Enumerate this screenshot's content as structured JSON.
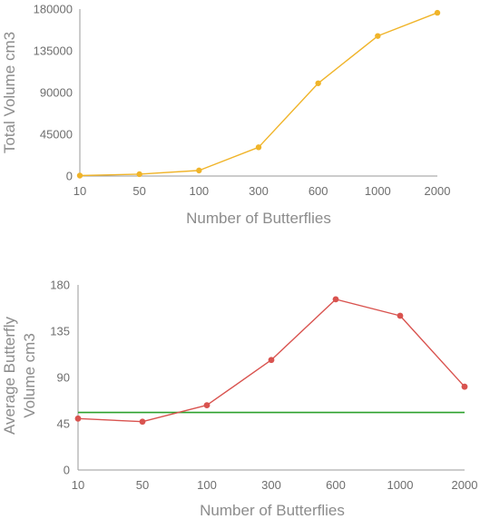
{
  "chart_data": [
    {
      "type": "line",
      "categories": [
        "10",
        "50",
        "100",
        "300",
        "600",
        "1000",
        "2000"
      ],
      "series": [
        {
          "values": [
            500,
            2000,
            6000,
            31000,
            100000,
            151000,
            176000
          ],
          "color": "#f0b429"
        }
      ],
      "xlabel": "Number of Butterflies",
      "ylabel": "Total Volume cm3",
      "ylim": [
        0,
        180000
      ],
      "yticks": [
        "0",
        "45000",
        "90000",
        "135000",
        "180000"
      ],
      "grid": false
    },
    {
      "type": "line",
      "categories": [
        "10",
        "50",
        "100",
        "300",
        "600",
        "1000",
        "2000"
      ],
      "series": [
        {
          "values": [
            50,
            47,
            63,
            107,
            166,
            150,
            81
          ],
          "color": "#d9534f"
        }
      ],
      "reference_line": {
        "value": 56,
        "color": "#2ca02c"
      },
      "xlabel": "Number of Butterflies",
      "ylabel_lines": [
        "Average Butterfly",
        "Volume cm3"
      ],
      "ylim": [
        0,
        180
      ],
      "yticks": [
        "0",
        "45",
        "90",
        "135",
        "180"
      ],
      "grid": false
    }
  ]
}
